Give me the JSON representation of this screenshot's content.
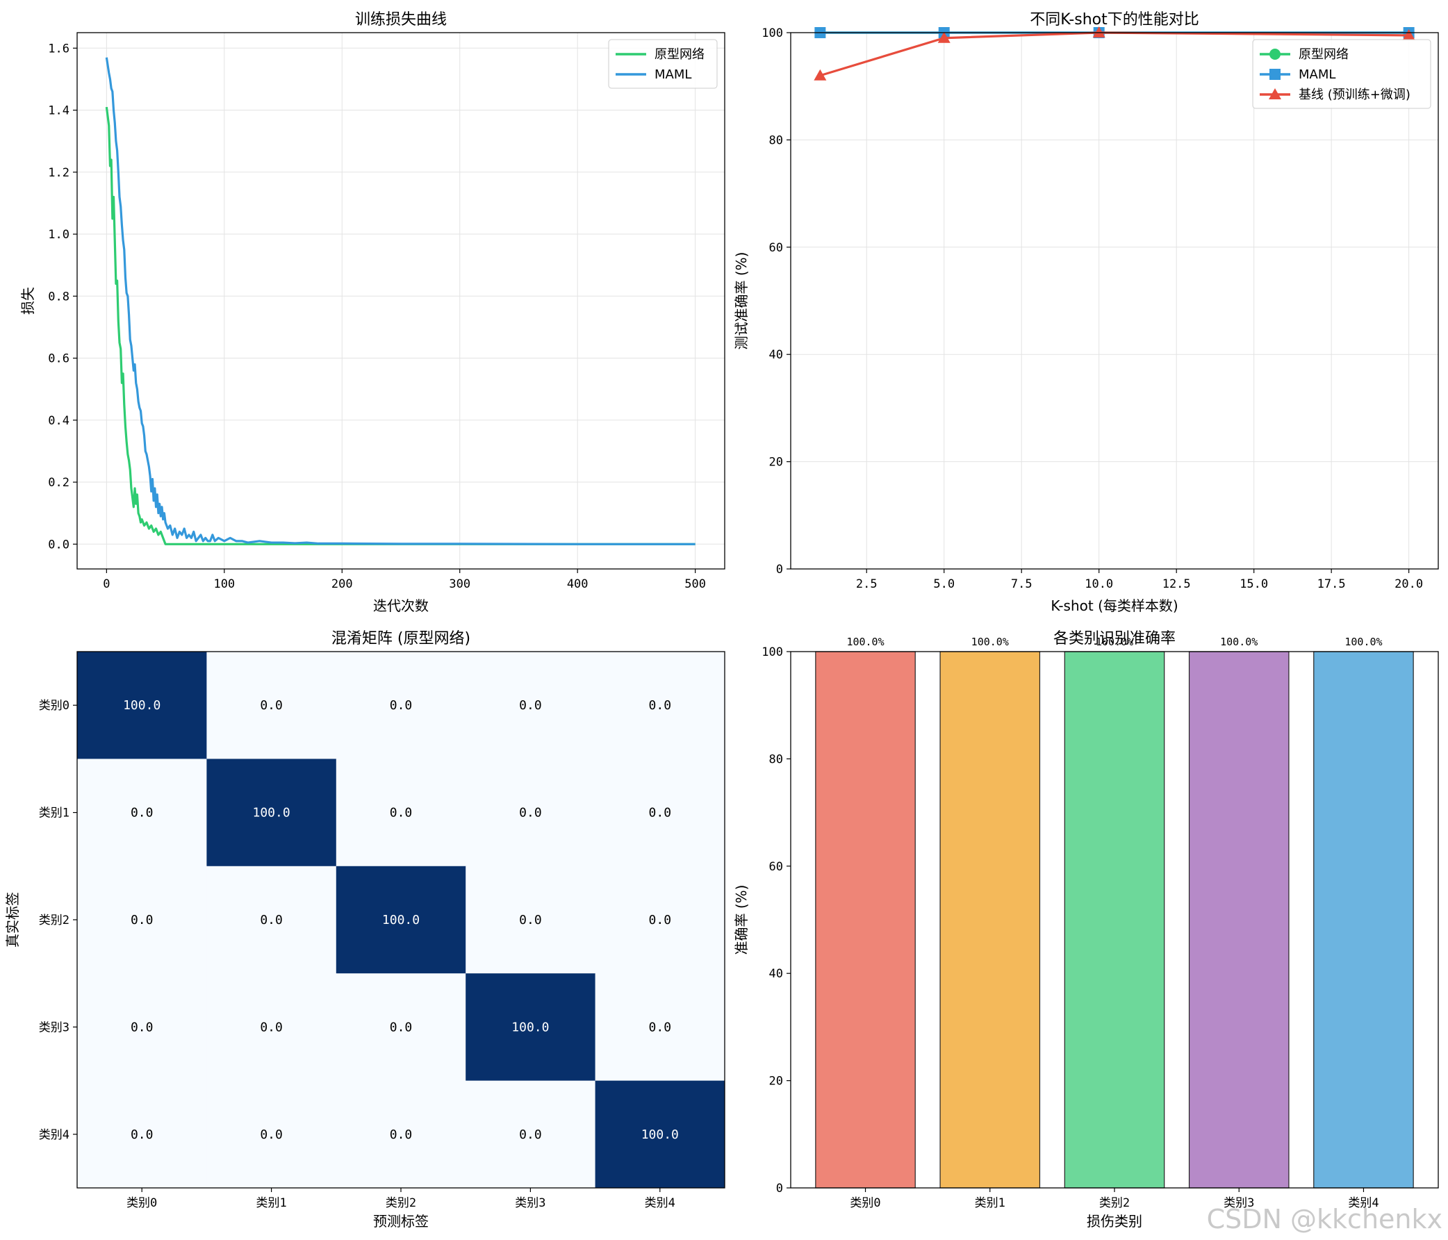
{
  "chart_data": [
    {
      "id": "loss",
      "type": "line",
      "title": "训练损失曲线",
      "xlabel": "迭代次数",
      "ylabel": "损失",
      "xlim": [
        -25,
        525
      ],
      "ylim": [
        -0.08,
        1.65
      ],
      "xticks": [
        0,
        100,
        200,
        300,
        400,
        500
      ],
      "xtick_labels": [
        "0",
        "100",
        "200",
        "300",
        "400",
        "500"
      ],
      "yticks": [
        0.0,
        0.2,
        0.4,
        0.6,
        0.8,
        1.0,
        1.2,
        1.4,
        1.6
      ],
      "ytick_labels": [
        "0.0",
        "0.2",
        "0.4",
        "0.6",
        "0.8",
        "1.0",
        "1.2",
        "1.4",
        "1.6"
      ],
      "grid": true,
      "legend": "top-right",
      "series": [
        {
          "name": "原型网络",
          "color": "#2ecc71",
          "points": [
            [
              0,
              1.41
            ],
            [
              2,
              1.35
            ],
            [
              3,
              1.22
            ],
            [
              4,
              1.24
            ],
            [
              5,
              1.05
            ],
            [
              6,
              1.12
            ],
            [
              7,
              0.98
            ],
            [
              8,
              0.84
            ],
            [
              9,
              0.85
            ],
            [
              10,
              0.72
            ],
            [
              11,
              0.65
            ],
            [
              12,
              0.63
            ],
            [
              13,
              0.52
            ],
            [
              14,
              0.55
            ],
            [
              15,
              0.45
            ],
            [
              16,
              0.38
            ],
            [
              17,
              0.33
            ],
            [
              18,
              0.29
            ],
            [
              19,
              0.27
            ],
            [
              20,
              0.24
            ],
            [
              21,
              0.18
            ],
            [
              22,
              0.15
            ],
            [
              23,
              0.12
            ],
            [
              24,
              0.18
            ],
            [
              25,
              0.13
            ],
            [
              26,
              0.16
            ],
            [
              27,
              0.1
            ],
            [
              28,
              0.09
            ],
            [
              29,
              0.07
            ],
            [
              30,
              0.08
            ],
            [
              32,
              0.06
            ],
            [
              34,
              0.07
            ],
            [
              36,
              0.05
            ],
            [
              38,
              0.06
            ],
            [
              40,
              0.04
            ],
            [
              42,
              0.05
            ],
            [
              44,
              0.03
            ],
            [
              46,
              0.04
            ],
            [
              48,
              0.02
            ],
            [
              50,
              0.0
            ],
            [
              60,
              0.0
            ],
            [
              100,
              0.0
            ],
            [
              500,
              0.0
            ]
          ]
        },
        {
          "name": "MAML",
          "color": "#3498db",
          "points": [
            [
              0,
              1.57
            ],
            [
              2,
              1.52
            ],
            [
              3,
              1.5
            ],
            [
              4,
              1.47
            ],
            [
              5,
              1.46
            ],
            [
              6,
              1.4
            ],
            [
              7,
              1.36
            ],
            [
              8,
              1.3
            ],
            [
              9,
              1.27
            ],
            [
              10,
              1.2
            ],
            [
              11,
              1.12
            ],
            [
              12,
              1.09
            ],
            [
              13,
              1.03
            ],
            [
              14,
              0.98
            ],
            [
              15,
              0.95
            ],
            [
              16,
              0.86
            ],
            [
              17,
              0.81
            ],
            [
              18,
              0.8
            ],
            [
              19,
              0.74
            ],
            [
              20,
              0.66
            ],
            [
              21,
              0.64
            ],
            [
              22,
              0.6
            ],
            [
              23,
              0.56
            ],
            [
              24,
              0.58
            ],
            [
              25,
              0.52
            ],
            [
              26,
              0.5
            ],
            [
              27,
              0.46
            ],
            [
              28,
              0.44
            ],
            [
              29,
              0.43
            ],
            [
              30,
              0.39
            ],
            [
              31,
              0.38
            ],
            [
              32,
              0.35
            ],
            [
              33,
              0.3
            ],
            [
              34,
              0.29
            ],
            [
              35,
              0.27
            ],
            [
              36,
              0.25
            ],
            [
              37,
              0.22
            ],
            [
              38,
              0.17
            ],
            [
              39,
              0.21
            ],
            [
              40,
              0.14
            ],
            [
              41,
              0.18
            ],
            [
              42,
              0.12
            ],
            [
              43,
              0.16
            ],
            [
              44,
              0.1
            ],
            [
              45,
              0.13
            ],
            [
              46,
              0.09
            ],
            [
              47,
              0.12
            ],
            [
              48,
              0.08
            ],
            [
              49,
              0.1
            ],
            [
              50,
              0.07
            ],
            [
              52,
              0.05
            ],
            [
              54,
              0.06
            ],
            [
              56,
              0.03
            ],
            [
              58,
              0.05
            ],
            [
              60,
              0.02
            ],
            [
              62,
              0.04
            ],
            [
              64,
              0.03
            ],
            [
              66,
              0.05
            ],
            [
              68,
              0.02
            ],
            [
              70,
              0.03
            ],
            [
              72,
              0.02
            ],
            [
              74,
              0.04
            ],
            [
              76,
              0.01
            ],
            [
              78,
              0.02
            ],
            [
              80,
              0.03
            ],
            [
              82,
              0.01
            ],
            [
              84,
              0.02
            ],
            [
              86,
              0.01
            ],
            [
              88,
              0.01
            ],
            [
              90,
              0.03
            ],
            [
              92,
              0.01
            ],
            [
              95,
              0.02
            ],
            [
              100,
              0.01
            ],
            [
              105,
              0.02
            ],
            [
              110,
              0.01
            ],
            [
              115,
              0.01
            ],
            [
              120,
              0.005
            ],
            [
              130,
              0.01
            ],
            [
              140,
              0.005
            ],
            [
              150,
              0.005
            ],
            [
              160,
              0.003
            ],
            [
              170,
              0.005
            ],
            [
              180,
              0.002
            ],
            [
              200,
              0.002
            ],
            [
              250,
              0.001
            ],
            [
              300,
              0.001
            ],
            [
              400,
              0.0
            ],
            [
              500,
              0.0
            ]
          ]
        }
      ]
    },
    {
      "id": "kshot",
      "type": "line",
      "title": "不同K-shot下的性能对比",
      "xlabel": "K-shot (每类样本数)",
      "ylabel": "测试准确率 (%)",
      "xlim": [
        0.05,
        20.95
      ],
      "ylim": [
        0,
        100
      ],
      "xticks": [
        2.5,
        5.0,
        7.5,
        10.0,
        12.5,
        15.0,
        17.5,
        20.0
      ],
      "xtick_labels": [
        "2.5",
        "5.0",
        "7.5",
        "10.0",
        "12.5",
        "15.0",
        "17.5",
        "20.0"
      ],
      "yticks": [
        0,
        20,
        40,
        60,
        80,
        100
      ],
      "ytick_labels": [
        "0",
        "20",
        "40",
        "60",
        "80",
        "100"
      ],
      "grid": true,
      "legend": "top-right",
      "series": [
        {
          "name": "原型网络",
          "color": "#2ecc71",
          "marker": "circle",
          "x": [
            1,
            5,
            10,
            20
          ],
          "values": [
            100,
            100,
            100,
            100
          ]
        },
        {
          "name": "MAML",
          "color": "#3498db",
          "marker": "square",
          "x": [
            1,
            5,
            10,
            20
          ],
          "values": [
            100,
            100,
            100,
            100
          ]
        },
        {
          "name": "基线 (预训练+微调)",
          "color": "#e74c3c",
          "marker": "triangle",
          "x": [
            1,
            5,
            10,
            20
          ],
          "values": [
            92,
            99,
            100,
            99.5
          ]
        }
      ]
    },
    {
      "id": "confusion",
      "type": "heatmap",
      "title": "混淆矩阵 (原型网络)",
      "xlabel": "预测标签",
      "ylabel": "真实标签",
      "categories": [
        "类别0",
        "类别1",
        "类别2",
        "类别3",
        "类别4"
      ],
      "low_color": "#f7fbff",
      "high_color": "#08306b",
      "values": [
        [
          100.0,
          0.0,
          0.0,
          0.0,
          0.0
        ],
        [
          0.0,
          100.0,
          0.0,
          0.0,
          0.0
        ],
        [
          0.0,
          0.0,
          100.0,
          0.0,
          0.0
        ],
        [
          0.0,
          0.0,
          0.0,
          100.0,
          0.0
        ],
        [
          0.0,
          0.0,
          0.0,
          0.0,
          100.0
        ]
      ],
      "cell_labels": [
        [
          "100.0",
          "0.0",
          "0.0",
          "0.0",
          "0.0"
        ],
        [
          "0.0",
          "100.0",
          "0.0",
          "0.0",
          "0.0"
        ],
        [
          "0.0",
          "0.0",
          "100.0",
          "0.0",
          "0.0"
        ],
        [
          "0.0",
          "0.0",
          "0.0",
          "100.0",
          "0.0"
        ],
        [
          "0.0",
          "0.0",
          "0.0",
          "0.0",
          "100.0"
        ]
      ]
    },
    {
      "id": "per_class",
      "type": "bar",
      "title": "各类别识别准确率",
      "xlabel": "损伤类别",
      "ylabel": "准确率 (%)",
      "ylim": [
        0,
        100
      ],
      "yticks": [
        0,
        20,
        40,
        60,
        80,
        100
      ],
      "ytick_labels": [
        "0",
        "20",
        "40",
        "60",
        "80",
        "100"
      ],
      "categories": [
        "类别0",
        "类别1",
        "类别2",
        "类别3",
        "类别4"
      ],
      "values": [
        100,
        100,
        100,
        100,
        100
      ],
      "value_labels": [
        "100.0%",
        "100.0%",
        "100.0%",
        "100.0%",
        "100.0%"
      ],
      "colors": [
        "#ee8577",
        "#f4b95a",
        "#6dd89a",
        "#b68ac8",
        "#6cb4e0"
      ]
    }
  ],
  "watermark": "CSDN @kkchenkx"
}
